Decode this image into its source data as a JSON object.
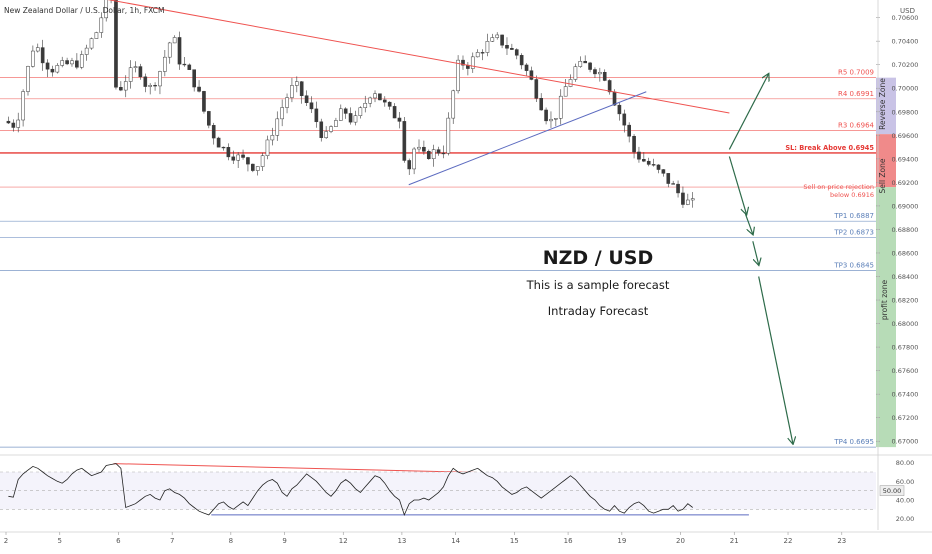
{
  "header": {
    "title": "New Zealand Dollar / U.S. Dollar, 1h, FXCM"
  },
  "annotations": {
    "pair": "NZD / USD",
    "subtitle": "This is a sample forecast",
    "forecast_type": "Intraday Forecast",
    "sell_note_line1": "Sell on price rejection",
    "sell_note_line2": "below 0.6916"
  },
  "zones": {
    "reverse": "Reverse Zone",
    "sell": "Sell Zone",
    "profit": "profit zone"
  },
  "colors": {
    "resistance": "#ef5350",
    "target": "#5b7fb8",
    "trend_red": "#ef5350",
    "trend_blue": "#5c6bc0",
    "forecast_arrow": "#2e6b4a",
    "candle": "#3a3a3a",
    "reverse_zone": "#c9c3e6",
    "sell_zone": "#f08a8a",
    "profit_zone": "#b7dcb7"
  },
  "levels": [
    {
      "id": "r5",
      "label": "R5 0.7009",
      "value": 0.7009,
      "color": "#ef5350"
    },
    {
      "id": "r4",
      "label": "R4 0.6991",
      "value": 0.6991,
      "color": "#ef5350"
    },
    {
      "id": "r3",
      "label": "R3 0.6964",
      "value": 0.6964,
      "color": "#ef5350"
    },
    {
      "id": "sl",
      "label": "SL: Break Above 0.6945",
      "value": 0.6945,
      "color": "#e53935"
    },
    {
      "id": "entry",
      "label": "",
      "value": 0.6916,
      "color": "#ef5350"
    },
    {
      "id": "tp1",
      "label": "TP1 0.6887",
      "value": 0.6887,
      "color": "#5b7fb8"
    },
    {
      "id": "tp2",
      "label": "TP2 0.6873",
      "value": 0.6873,
      "color": "#5b7fb8"
    },
    {
      "id": "tp3",
      "label": "TP3 0.6845",
      "value": 0.6845,
      "color": "#5b7fb8"
    },
    {
      "id": "tp4",
      "label": "TP4 0.6695",
      "value": 0.6695,
      "color": "#5b7fb8"
    }
  ],
  "chart_data": {
    "type": "candlestick",
    "title": "New Zealand Dollar / U.S. Dollar, 1h, FXCM",
    "currency": "USD",
    "y_ticks": [
      "0.70600",
      "0.70400",
      "0.70200",
      "0.70000",
      "0.69800",
      "0.69600",
      "0.69400",
      "0.69200",
      "0.69000",
      "0.68800",
      "0.68600",
      "0.68400",
      "0.68200",
      "0.68000",
      "0.67800",
      "0.67600",
      "0.67400",
      "0.67200",
      "0.67000"
    ],
    "ylim": [
      0.669,
      0.7075
    ],
    "x_ticks": [
      "2",
      "5",
      "6",
      "7",
      "8",
      "9",
      "12",
      "13",
      "14",
      "15",
      "16",
      "19",
      "20",
      "21",
      "22",
      "23"
    ],
    "close_path": [
      [
        0.0,
        0.6972
      ],
      [
        2.5,
        0.6968
      ],
      [
        3.5,
        0.699
      ],
      [
        4.5,
        0.701
      ],
      [
        5.5,
        0.7028
      ],
      [
        6.3,
        0.704
      ],
      [
        7.5,
        0.7028
      ],
      [
        9.5,
        0.7016
      ],
      [
        12.5,
        0.702
      ],
      [
        15.5,
        0.7022
      ],
      [
        17.5,
        0.7038
      ],
      [
        19.5,
        0.7052
      ],
      [
        20.8,
        0.708
      ],
      [
        22.0,
        0.7078
      ],
      [
        22.4,
        0.7004
      ],
      [
        23.5,
        0.6998
      ],
      [
        25.5,
        0.7012
      ],
      [
        27.5,
        0.7018
      ],
      [
        29.5,
        0.6998
      ],
      [
        31.5,
        0.701
      ],
      [
        34.5,
        0.7046
      ],
      [
        36.0,
        0.7022
      ],
      [
        37.5,
        0.7016
      ],
      [
        39.5,
        0.7
      ],
      [
        41.5,
        0.6972
      ],
      [
        43.5,
        0.6955
      ],
      [
        45.5,
        0.6946
      ],
      [
        47.5,
        0.6942
      ],
      [
        49.5,
        0.6938
      ],
      [
        51.5,
        0.6932
      ],
      [
        53.5,
        0.6948
      ],
      [
        55.5,
        0.697
      ],
      [
        57.5,
        0.699
      ],
      [
        59.5,
        0.7004
      ],
      [
        61.5,
        0.699
      ],
      [
        63.5,
        0.6976
      ],
      [
        65.5,
        0.6956
      ],
      [
        67.5,
        0.697
      ],
      [
        69.5,
        0.6982
      ],
      [
        71.5,
        0.697
      ],
      [
        73.5,
        0.6985
      ],
      [
        75.5,
        0.7
      ],
      [
        77.5,
        0.6988
      ],
      [
        79.5,
        0.6978
      ],
      [
        81.0,
        0.6975
      ],
      [
        82.4,
        0.6925
      ],
      [
        84.0,
        0.695
      ],
      [
        86.0,
        0.6942
      ],
      [
        88.0,
        0.6946
      ],
      [
        90.0,
        0.6948
      ],
      [
        91.5,
        0.6988
      ],
      [
        93.0,
        0.7022
      ],
      [
        95.0,
        0.702
      ],
      [
        97.0,
        0.703
      ],
      [
        99.0,
        0.7038
      ],
      [
        101.0,
        0.7042
      ],
      [
        103.0,
        0.7035
      ],
      [
        105.0,
        0.7028
      ],
      [
        107.5,
        0.701
      ],
      [
        109.5,
        0.699
      ],
      [
        111.5,
        0.697
      ],
      [
        113.0,
        0.6978
      ],
      [
        115.0,
        0.7002
      ],
      [
        117.0,
        0.7018
      ],
      [
        119.0,
        0.702
      ],
      [
        121.0,
        0.7016
      ],
      [
        123.0,
        0.701
      ],
      [
        125.0,
        0.6988
      ],
      [
        127.0,
        0.6968
      ],
      [
        129.0,
        0.6945
      ],
      [
        131.0,
        0.6938
      ],
      [
        133.0,
        0.6932
      ],
      [
        135.0,
        0.6925
      ],
      [
        137.0,
        0.6916
      ],
      [
        139.0,
        0.6905
      ],
      [
        140.5,
        0.6902
      ]
    ],
    "bars_total": 141,
    "x_tick_bars": [
      0,
      11,
      23,
      34,
      46,
      57,
      69,
      81,
      92,
      104,
      115,
      126,
      138,
      149,
      160,
      171
    ],
    "rsi": {
      "ticks": [
        "80.00",
        "60.00",
        "40.00",
        "20.00"
      ],
      "ylim": [
        10,
        85
      ],
      "current": "50.00",
      "levels": [
        70,
        50,
        30
      ],
      "values": [
        44,
        43,
        62,
        68,
        72,
        76,
        74,
        70,
        66,
        63,
        60,
        58,
        62,
        68,
        72,
        74,
        70,
        66,
        68,
        70,
        77,
        78,
        79,
        74,
        32,
        34,
        36,
        40,
        44,
        46,
        42,
        40,
        50,
        52,
        48,
        46,
        42,
        36,
        32,
        28,
        26,
        24,
        30,
        36,
        38,
        33,
        30,
        34,
        38,
        34,
        42,
        50,
        56,
        60,
        62,
        58,
        48,
        44,
        52,
        56,
        62,
        68,
        64,
        60,
        54,
        48,
        44,
        50,
        58,
        62,
        58,
        52,
        48,
        54,
        60,
        66,
        64,
        58,
        50,
        44,
        40,
        24,
        36,
        40,
        40,
        42,
        40,
        44,
        48,
        54,
        66,
        74,
        70,
        68,
        70,
        72,
        74,
        70,
        66,
        64,
        60,
        54,
        50,
        46,
        48,
        52,
        54,
        50,
        46,
        42,
        46,
        50,
        54,
        58,
        62,
        66,
        62,
        56,
        50,
        44,
        40,
        34,
        30,
        28,
        34,
        28,
        26,
        32,
        36,
        38,
        34,
        28,
        26,
        28,
        30,
        30,
        34,
        28,
        30,
        36,
        32
      ]
    },
    "trendlines": [
      {
        "name": "descending-resistance",
        "from": [
          20,
          0.7076
        ],
        "to": [
          148,
          0.6979
        ],
        "color": "#ef5350"
      },
      {
        "name": "ascending-support",
        "from": [
          82.4,
          0.6918
        ],
        "to": [
          131,
          0.6997
        ],
        "color": "#5c6bc0"
      },
      {
        "name": "rsi-resistance",
        "from": [
          22,
          79
        ],
        "to": [
          148,
          63
        ],
        "color": "#ef5350"
      },
      {
        "name": "rsi-lower-resistance",
        "from": [
          96,
          66
        ],
        "to": [
          152,
          44
        ],
        "color": "#ef5350"
      },
      {
        "name": "rsi-support",
        "from": [
          42,
          24
        ],
        "to": [
          152,
          24
        ],
        "color": "#5c6bc0"
      }
    ],
    "forecast_arrows": [
      {
        "name": "reverse-up",
        "from": [
          148,
          0.6948
        ],
        "to": [
          156,
          0.7012
        ]
      },
      {
        "name": "down-to-tp1",
        "from": [
          148,
          0.6942
        ],
        "to": [
          151.5,
          0.6893
        ]
      },
      {
        "name": "down-to-tp2",
        "from": [
          151.3,
          0.6893
        ],
        "to": [
          152.8,
          0.6876
        ]
      },
      {
        "name": "down-to-tp3",
        "from": [
          152.8,
          0.687
        ],
        "to": [
          154,
          0.685
        ]
      },
      {
        "name": "down-to-tp4",
        "from": [
          154,
          0.684
        ],
        "to": [
          161,
          0.6698
        ]
      }
    ]
  }
}
